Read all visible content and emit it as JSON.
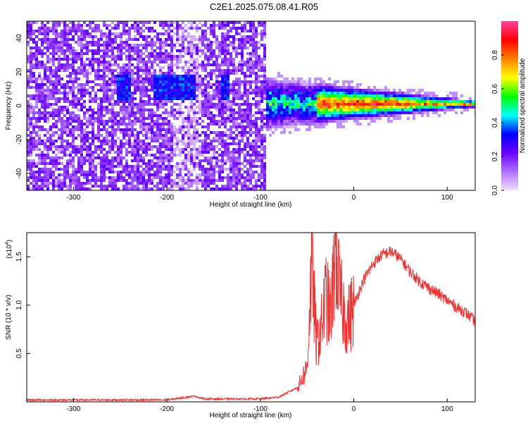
{
  "title": "C2E1.2025.075.08.41.R05",
  "chart_data": [
    {
      "type": "heatmap",
      "title": "",
      "xlabel": "Height of straight line (km)",
      "ylabel": "Frequency (Hz)",
      "xlim": [
        -350,
        130
      ],
      "ylim": [
        -50,
        50
      ],
      "x_ticks": [
        -300,
        -200,
        -100,
        0,
        100
      ],
      "y_ticks": [
        -40,
        -20,
        0,
        20,
        40
      ],
      "colorbar": {
        "label": "Normalized spectral amplitude",
        "range": [
          0,
          1
        ],
        "ticks": [
          0.0,
          0.2,
          0.4,
          0.6,
          0.8
        ],
        "colormap": [
          "#f0e0ff",
          "#b070ff",
          "#6a00ff",
          "#0000ff",
          "#00ffff",
          "#00ff00",
          "#ffff00",
          "#ff8000",
          "#ff0000",
          "#ff40a0"
        ]
      },
      "ridge": [
        {
          "x": -85,
          "f": 2,
          "amp": 0.45
        },
        {
          "x": -60,
          "f": 2,
          "amp": 0.4
        },
        {
          "x": -40,
          "f": 2,
          "amp": 0.55
        },
        {
          "x": -20,
          "f": 1,
          "amp": 0.8
        },
        {
          "x": 0,
          "f": 1,
          "amp": 0.9
        },
        {
          "x": 40,
          "f": 2,
          "amp": 0.95
        },
        {
          "x": 80,
          "f": 3,
          "amp": 0.9
        },
        {
          "x": 130,
          "f": 3,
          "amp": 0.5
        }
      ]
    },
    {
      "type": "line",
      "title": "",
      "xlabel": "Height of straight line (km)",
      "ylabel": "SNR (10 * v/v)",
      "yscale_label": "(x10",
      "yscale_exp": "4",
      "xlim": [
        -350,
        130
      ],
      "ylim": [
        0,
        1.75
      ],
      "x_ticks": [
        -300,
        -200,
        -100,
        0,
        100
      ],
      "y_ticks": [
        0.5,
        1.0,
        1.5
      ],
      "y_tick_labels": [
        "0.5",
        "1.0",
        "1.5"
      ],
      "color": "#ee3333",
      "series": [
        {
          "x": [
            -350,
            -200,
            -170,
            -160,
            -100,
            -80,
            -60,
            -50,
            -45,
            -40,
            -35,
            -30,
            -25,
            -22,
            -20,
            -15,
            -10,
            -5,
            0,
            10,
            20,
            30,
            40,
            50,
            60,
            70,
            80,
            90,
            100,
            110,
            120,
            130
          ],
          "values": [
            0.02,
            0.02,
            0.06,
            0.03,
            0.03,
            0.05,
            0.15,
            0.35,
            1.45,
            0.6,
            0.75,
            1.1,
            0.9,
            1.2,
            1.75,
            1.1,
            0.9,
            0.85,
            1.0,
            1.25,
            1.42,
            1.52,
            1.56,
            1.48,
            1.35,
            1.25,
            1.18,
            1.12,
            1.05,
            0.98,
            0.92,
            0.83
          ]
        }
      ]
    }
  ]
}
